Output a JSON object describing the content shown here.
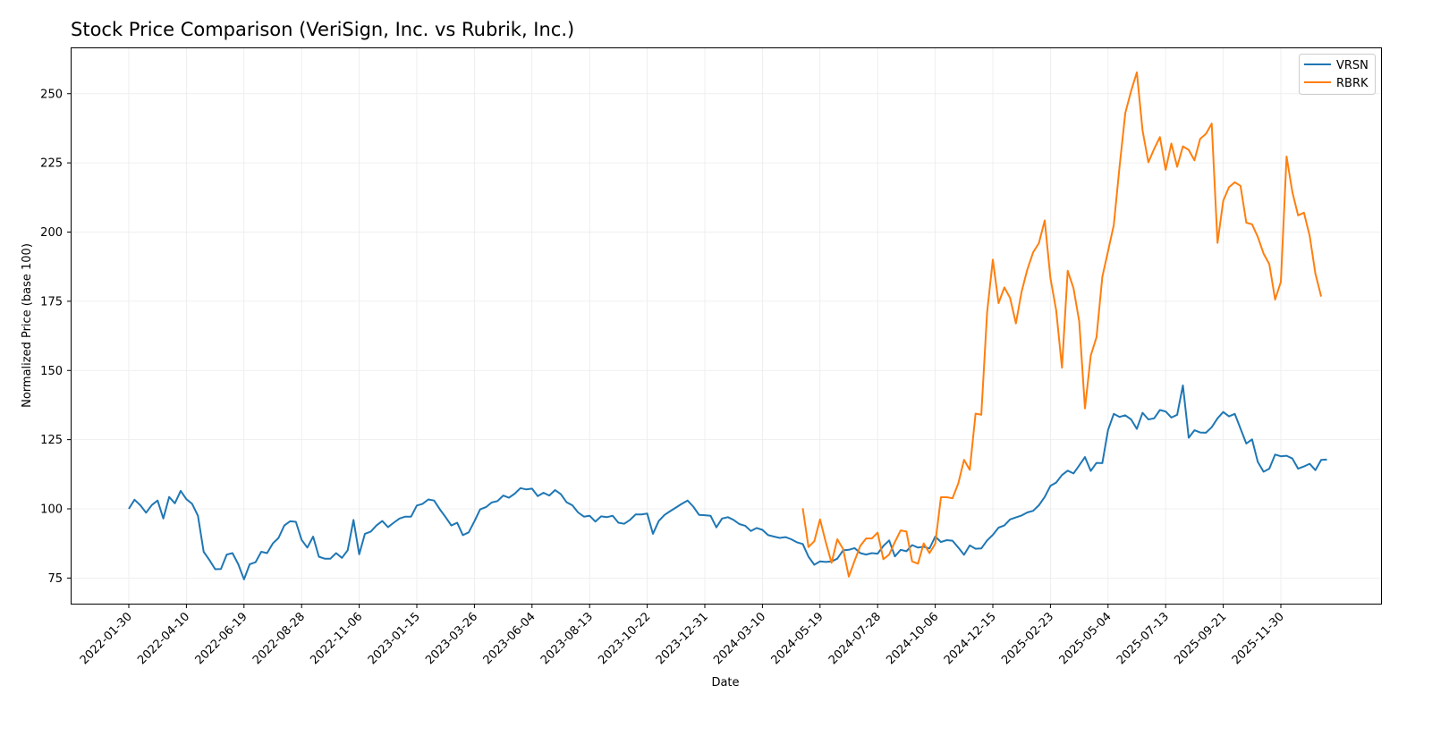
{
  "chart_data": {
    "type": "line",
    "title": "Stock Price Comparison (VeriSign, Inc. vs Rubrik, Inc.)",
    "xlabel": "Date",
    "ylabel": "Normalized Price (base 100)",
    "ylim": [
      65.5,
      267
    ],
    "y_ticks": [
      75,
      100,
      125,
      150,
      175,
      200,
      225,
      250
    ],
    "x_ticks": [
      "2022-01-30",
      "2022-04-10",
      "2022-06-19",
      "2022-08-28",
      "2022-11-06",
      "2023-01-15",
      "2023-03-26",
      "2023-06-04",
      "2023-08-13",
      "2023-10-22",
      "2023-12-31",
      "2024-03-10",
      "2024-05-19",
      "2024-07-28",
      "2024-10-06",
      "2024-12-15",
      "2025-02-23",
      "2025-05-04",
      "2025-07-13",
      "2025-09-21",
      "2025-11-30"
    ],
    "x_start": "2022-01-30",
    "x_step_days": 7,
    "grid": true,
    "legend_position": "upper right",
    "series": [
      {
        "name": "VRSN",
        "color": "#1f77b4",
        "start_index": 0,
        "values": [
          100,
          103.3,
          101.3,
          98.6,
          101.4,
          103,
          96.5,
          104.3,
          102,
          106.5,
          103.5,
          101.8,
          97.5,
          84.5,
          81.5,
          78.2,
          78.3,
          83.5,
          84,
          80,
          74.5,
          80,
          80.7,
          84.5,
          84,
          87.5,
          89.5,
          94,
          95.5,
          95.3,
          88.8,
          86,
          90,
          82.7,
          82,
          82,
          84,
          82.3,
          85,
          96,
          83.6,
          91,
          91.8,
          94,
          95.6,
          93.4,
          95,
          96.5,
          97.2,
          97.2,
          101.2,
          101.8,
          103.4,
          103,
          99.8,
          97,
          94,
          95,
          90.5,
          91.5,
          95.5,
          99.8,
          100.6,
          102.3,
          102.8,
          104.8,
          104,
          105.5,
          107.5,
          107,
          107.3,
          104.6,
          105.8,
          104.8,
          106.8,
          105.3,
          102.4,
          101.3,
          98.7,
          97.2,
          97.5,
          95.4,
          97.3,
          97,
          97.5,
          95,
          94.6,
          96,
          98,
          98,
          98.3,
          91,
          95.6,
          97.8,
          99.2,
          100.5,
          101.8,
          103,
          100.8,
          97.8,
          97.7,
          97.5,
          93.3,
          96.5,
          97,
          96,
          94.5,
          93.9,
          92,
          93.1,
          92.4,
          90.5,
          90,
          89.5,
          89.8,
          89,
          87.9,
          87.3,
          82.7,
          79.8,
          81,
          80.8,
          81,
          82,
          85,
          85.2,
          85.8,
          84,
          83.5,
          84,
          83.8,
          86.6,
          88.6,
          82.8,
          85.2,
          84.7,
          86.9,
          86,
          86.3,
          85.7,
          90,
          88,
          88.7,
          88.5,
          86,
          83.4,
          86.8,
          85.6,
          85.7,
          88.6,
          90.6,
          93.2,
          94,
          96.2,
          96.9,
          97.6,
          98.7,
          99.3,
          101.3,
          104.3,
          108.3,
          109.5,
          112.2,
          113.8,
          112.8,
          115.7,
          118.7,
          113.7,
          116.6,
          116.5,
          128.5,
          134.3,
          133.2,
          133.8,
          132.3,
          128.9,
          134.7,
          132.3,
          132.7,
          135.7,
          135.2,
          133,
          134,
          144.6,
          125.7,
          128.4,
          127.6,
          127.5,
          129.5,
          132.7,
          135,
          133.4,
          134.3,
          129,
          123.6,
          125.1,
          117,
          113.4,
          114.5,
          119.6,
          119,
          119.2,
          118.2,
          114.5,
          115.3,
          116.3,
          114,
          117.7,
          117.8
        ]
      },
      {
        "name": "RBRK",
        "color": "#ff7f0e",
        "start_index": 117,
        "values": [
          100.2,
          86.2,
          88.3,
          96.2,
          88,
          80.5,
          89,
          85.5,
          75.5,
          81.2,
          86.7,
          89.3,
          89.3,
          91.4,
          81.8,
          83.5,
          88,
          92.2,
          91.8,
          81,
          80.2,
          87.5,
          84,
          87.4,
          104.2,
          104.2,
          103.8,
          109.2,
          117.7,
          114.1,
          134.4,
          134,
          171,
          190,
          174.3,
          180,
          176.2,
          167,
          178.5,
          186.5,
          192.7,
          196,
          204.2,
          183.4,
          171.8,
          151,
          186,
          179.7,
          167.7,
          136.3,
          155.4,
          162,
          183.8,
          193.1,
          202.5,
          223.7,
          243,
          251,
          257.7,
          236.7,
          225.2,
          230,
          234.3,
          222.5,
          232,
          223.6,
          231,
          229.7,
          225.9,
          233.7,
          235.5,
          239.2,
          196.1,
          211.3,
          216.2,
          218,
          216.7,
          203.4,
          202.8,
          198.3,
          192.2,
          188.4,
          175.6,
          182,
          227.3,
          214.4,
          206,
          207,
          198.7,
          185,
          176.7
        ]
      }
    ]
  },
  "legend": {
    "items": [
      {
        "label": "VRSN",
        "color": "#1f77b4"
      },
      {
        "label": "RBRK",
        "color": "#ff7f0e"
      }
    ]
  }
}
